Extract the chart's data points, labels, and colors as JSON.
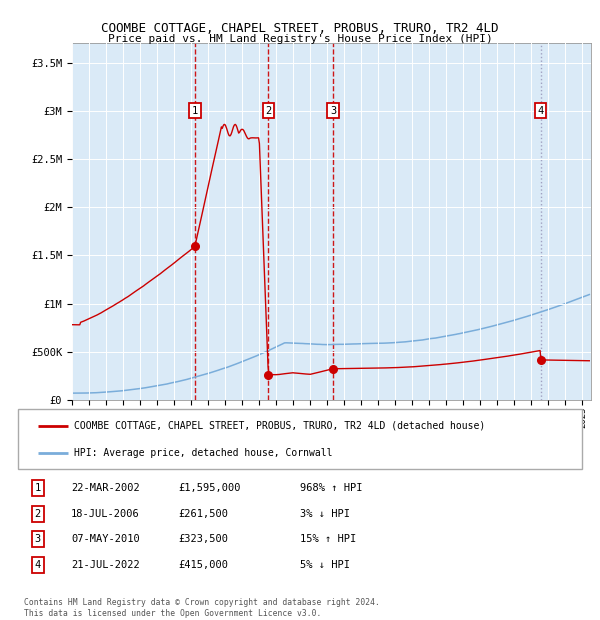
{
  "title": "COOMBE COTTAGE, CHAPEL STREET, PROBUS, TRURO, TR2 4LD",
  "subtitle": "Price paid vs. HM Land Registry's House Price Index (HPI)",
  "background_color": "#ffffff",
  "plot_bg_color": "#daeaf7",
  "red_line_color": "#cc0000",
  "blue_line_color": "#7aadda",
  "ylim": [
    0,
    3700000
  ],
  "yticks": [
    0,
    500000,
    1000000,
    1500000,
    2000000,
    2500000,
    3000000,
    3500000
  ],
  "ytick_labels": [
    "£0",
    "£500K",
    "£1M",
    "£1.5M",
    "£2M",
    "£2.5M",
    "£3M",
    "£3.5M"
  ],
  "xlim_start": 1995.0,
  "xlim_end": 2025.5,
  "transaction_dates": [
    2002.22,
    2006.54,
    2010.35,
    2022.54
  ],
  "transaction_prices": [
    1595000,
    261500,
    323500,
    415000
  ],
  "transaction_labels": [
    "1",
    "2",
    "3",
    "4"
  ],
  "vline_colors": [
    "#cc0000",
    "#cc0000",
    "#cc0000",
    "#9999bb"
  ],
  "vline_styles": [
    "--",
    "--",
    "--",
    ":"
  ],
  "legend_line1": "COOMBE COTTAGE, CHAPEL STREET, PROBUS, TRURO, TR2 4LD (detached house)",
  "legend_line2": "HPI: Average price, detached house, Cornwall",
  "table_rows": [
    [
      "1",
      "22-MAR-2002",
      "£1,595,000",
      "968% ↑ HPI"
    ],
    [
      "2",
      "18-JUL-2006",
      "£261,500",
      "3% ↓ HPI"
    ],
    [
      "3",
      "07-MAY-2010",
      "£323,500",
      "15% ↑ HPI"
    ],
    [
      "4",
      "21-JUL-2022",
      "£415,000",
      "5% ↓ HPI"
    ]
  ],
  "footer": "Contains HM Land Registry data © Crown copyright and database right 2024.\nThis data is licensed under the Open Government Licence v3.0."
}
